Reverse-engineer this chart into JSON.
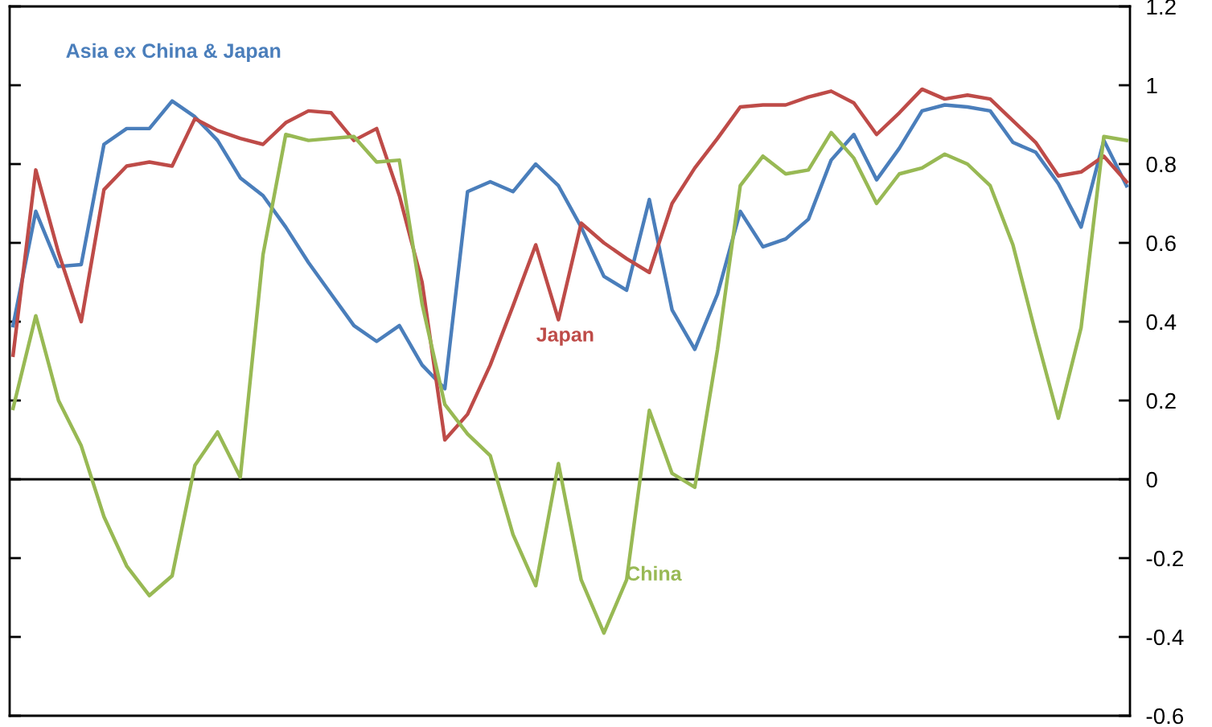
{
  "chart_data": {
    "type": "line",
    "categories": [
      null,
      null,
      null,
      null,
      null,
      null,
      null,
      null,
      null,
      null,
      null,
      null,
      null,
      null,
      null,
      null,
      null,
      null,
      null,
      null,
      null,
      null,
      null,
      null,
      null,
      null,
      null,
      null,
      null,
      null,
      null,
      null,
      null,
      null,
      null,
      null,
      null,
      null,
      null,
      null,
      null,
      null,
      null,
      null,
      null,
      null,
      null,
      null,
      null,
      null
    ],
    "series": [
      {
        "name": "Asia ex China & Japan",
        "color": "#4a7ebb",
        "values": [
          0.39,
          0.68,
          0.54,
          0.545,
          0.85,
          0.89,
          0.89,
          0.96,
          0.92,
          0.86,
          0.765,
          0.72,
          0.64,
          0.55,
          0.47,
          0.39,
          0.35,
          0.39,
          0.29,
          0.23,
          0.73,
          0.755,
          0.73,
          0.8,
          0.745,
          0.64,
          0.515,
          0.48,
          0.71,
          0.43,
          0.33,
          0.47,
          0.68,
          0.59,
          0.61,
          0.66,
          0.81,
          0.875,
          0.76,
          0.84,
          0.935,
          0.95,
          0.945,
          0.935,
          0.855,
          0.83,
          0.75,
          0.64,
          0.86,
          0.745
        ]
      },
      {
        "name": "Japan",
        "color": "#be4b48",
        "values": [
          0.315,
          0.785,
          0.575,
          0.4,
          0.735,
          0.795,
          0.805,
          0.795,
          0.915,
          0.885,
          0.865,
          0.85,
          0.905,
          0.935,
          0.93,
          0.86,
          0.89,
          0.72,
          0.5,
          0.1,
          0.165,
          0.29,
          0.44,
          0.595,
          0.405,
          0.65,
          0.6,
          0.56,
          0.525,
          0.7,
          0.79,
          0.865,
          0.945,
          0.95,
          0.95,
          0.97,
          0.985,
          0.955,
          0.875,
          0.93,
          0.99,
          0.965,
          0.975,
          0.965,
          0.91,
          0.855,
          0.77,
          0.78,
          0.82,
          0.755
        ]
      },
      {
        "name": "China",
        "color": "#98b954",
        "values": [
          0.18,
          0.415,
          0.2,
          0.085,
          -0.095,
          -0.22,
          -0.295,
          -0.245,
          0.035,
          0.12,
          0.005,
          0.57,
          0.875,
          0.86,
          0.865,
          0.87,
          0.805,
          0.81,
          0.445,
          0.19,
          0.115,
          0.06,
          -0.14,
          -0.27,
          0.04,
          -0.255,
          -0.39,
          -0.255,
          0.175,
          0.015,
          -0.02,
          0.33,
          0.745,
          0.82,
          0.775,
          0.785,
          0.88,
          0.815,
          0.7,
          0.775,
          0.79,
          0.825,
          0.8,
          0.745,
          0.595,
          0.37,
          0.155,
          0.385,
          0.87,
          0.86
        ]
      }
    ],
    "ylim": [
      -0.6,
      1.2
    ],
    "yticks": [
      -0.6,
      -0.4,
      -0.2,
      0,
      0.2,
      0.4,
      0.6,
      0.8,
      1,
      1.2
    ],
    "ref_lines": [
      {
        "axis": "y",
        "value": 0,
        "color": "#000000"
      }
    ],
    "grid": false,
    "legend": false,
    "marker": "none",
    "line_style": "solid"
  }
}
